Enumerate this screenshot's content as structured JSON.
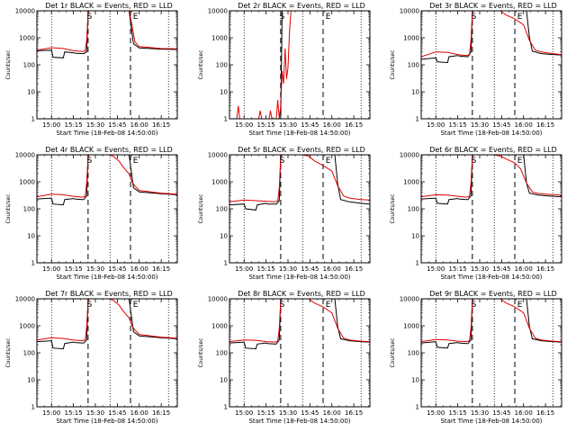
{
  "figure": {
    "y_ticks": [
      1,
      10,
      100,
      1000,
      10000
    ],
    "x_ticks": [
      {
        "t": 0,
        "label": "15:00"
      },
      {
        "t": 15,
        "label": "15:15"
      },
      {
        "t": 30,
        "label": "15:30"
      },
      {
        "t": 45,
        "label": "15:45"
      },
      {
        "t": 60,
        "label": "16:00"
      },
      {
        "t": 75,
        "label": "16:15"
      }
    ],
    "xlabel": "Start Time (18-Feb-08 14:50:00)",
    "ylabel": "Counts/sec",
    "s_marker": "S",
    "e_marker": "E",
    "colors": {
      "events": "#000000",
      "lld": "#e00000"
    },
    "dotted_lines_t": [
      0,
      40,
      80
    ],
    "dashed_lines_t": [
      25,
      54
    ],
    "s_t": 26,
    "e_t": 55
  },
  "chart_data": [
    {
      "type": "line",
      "title": "Det 1r BLACK = Events, RED = LLD",
      "xlim": [
        -10,
        86
      ],
      "ylim": [
        1,
        10000
      ],
      "yscale": "log",
      "series": [
        {
          "name": "Events",
          "x": [
            -10,
            0,
            1,
            8,
            9,
            15,
            16,
            21,
            22,
            24,
            25,
            27,
            40,
            53,
            56,
            60,
            75,
            86
          ],
          "values": [
            330,
            350,
            190,
            180,
            300,
            280,
            270,
            260,
            260,
            300,
            10000,
            10000,
            10000,
            10000,
            600,
            420,
            380,
            370
          ]
        },
        {
          "name": "LLD",
          "x": [
            -10,
            0,
            8,
            15,
            21,
            23,
            24,
            25,
            26,
            40,
            53,
            55,
            57,
            60,
            75,
            86
          ],
          "values": [
            350,
            430,
            400,
            330,
            310,
            320,
            800,
            8000,
            12000,
            12000,
            12000,
            3000,
            700,
            470,
            400,
            390
          ]
        }
      ]
    },
    {
      "type": "line",
      "title": "Det 2r BLACK = Events, RED = LLD",
      "xlim": [
        -10,
        86
      ],
      "ylim": [
        1,
        10000
      ],
      "yscale": "log",
      "series": [
        {
          "name": "Events",
          "x": [
            21,
            23,
            24,
            25,
            26,
            40,
            53
          ],
          "values": [
            1,
            1,
            1,
            1,
            10000,
            10000,
            10000
          ]
        },
        {
          "name": "LLD",
          "x": [
            -5,
            -4,
            -3,
            10,
            11,
            12,
            17,
            18,
            19,
            22,
            23,
            24,
            25,
            26,
            27,
            28,
            29,
            30,
            31,
            32,
            40,
            53
          ],
          "values": [
            1,
            3,
            1,
            1,
            2,
            1,
            1,
            2,
            1,
            1,
            5,
            1,
            3,
            60,
            20,
            400,
            30,
            80,
            1500,
            10000,
            10000,
            10000
          ]
        }
      ]
    },
    {
      "type": "line",
      "title": "Det 3r BLACK = Events, RED = LLD",
      "xlim": [
        -10,
        86
      ],
      "ylim": [
        1,
        10000
      ],
      "yscale": "log",
      "series": [
        {
          "name": "Events",
          "x": [
            -10,
            0,
            1,
            8,
            9,
            15,
            16,
            21,
            22,
            24,
            25,
            27,
            40,
            62,
            64,
            66,
            72,
            80,
            86
          ],
          "values": [
            160,
            180,
            130,
            120,
            200,
            220,
            210,
            200,
            200,
            300,
            10000,
            10000,
            10000,
            10000,
            1000,
            320,
            260,
            240,
            230
          ]
        },
        {
          "name": "LLD",
          "x": [
            -10,
            0,
            8,
            15,
            21,
            23,
            24,
            25,
            26,
            34,
            38,
            44,
            48,
            54,
            60,
            64,
            68,
            72,
            80,
            86
          ],
          "values": [
            200,
            300,
            290,
            240,
            220,
            240,
            800,
            8000,
            14000,
            14000,
            12000,
            10000,
            7000,
            5000,
            3000,
            800,
            350,
            300,
            260,
            240
          ]
        }
      ]
    },
    {
      "type": "line",
      "title": "Det 4r BLACK = Events, RED = LLD",
      "xlim": [
        -10,
        86
      ],
      "ylim": [
        1,
        10000
      ],
      "yscale": "log",
      "series": [
        {
          "name": "Events",
          "x": [
            -10,
            0,
            1,
            8,
            9,
            15,
            16,
            21,
            22,
            24,
            25,
            27,
            40,
            53,
            56,
            60,
            75,
            86
          ],
          "values": [
            230,
            250,
            150,
            140,
            220,
            240,
            230,
            220,
            220,
            300,
            10000,
            10000,
            10000,
            10000,
            600,
            420,
            360,
            330
          ]
        },
        {
          "name": "LLD",
          "x": [
            -10,
            0,
            8,
            15,
            21,
            23,
            24,
            25,
            26,
            34,
            38,
            42,
            46,
            50,
            53,
            55,
            57,
            60,
            75,
            86
          ],
          "values": [
            280,
            350,
            330,
            290,
            270,
            290,
            900,
            8000,
            14000,
            14000,
            11000,
            9000,
            6000,
            3000,
            2000,
            1000,
            700,
            480,
            380,
            350
          ]
        }
      ]
    },
    {
      "type": "line",
      "title": "Det 5r BLACK = Events, RED = LLD",
      "xlim": [
        -10,
        86
      ],
      "ylim": [
        1,
        10000
      ],
      "yscale": "log",
      "series": [
        {
          "name": "Events",
          "x": [
            -10,
            0,
            1,
            8,
            9,
            15,
            16,
            21,
            22,
            24,
            25,
            27,
            40,
            62,
            64,
            66,
            72,
            80,
            86
          ],
          "values": [
            140,
            150,
            100,
            90,
            140,
            160,
            150,
            150,
            150,
            200,
            10000,
            10000,
            10000,
            10000,
            800,
            220,
            180,
            160,
            150
          ]
        },
        {
          "name": "LLD",
          "x": [
            -10,
            0,
            8,
            15,
            21,
            23,
            24,
            25,
            26,
            34,
            38,
            44,
            48,
            54,
            60,
            64,
            68,
            72,
            80,
            86
          ],
          "values": [
            180,
            210,
            200,
            190,
            180,
            200,
            600,
            7000,
            14000,
            14000,
            11000,
            9000,
            6000,
            4000,
            2500,
            700,
            300,
            250,
            220,
            210
          ]
        }
      ]
    },
    {
      "type": "line",
      "title": "Det 6r BLACK = Events, RED = LLD",
      "xlim": [
        -10,
        86
      ],
      "ylim": [
        1,
        10000
      ],
      "yscale": "log",
      "series": [
        {
          "name": "Events",
          "x": [
            -10,
            0,
            1,
            8,
            9,
            15,
            16,
            21,
            22,
            24,
            25,
            27,
            40,
            60,
            62,
            64,
            70,
            80,
            86
          ],
          "values": [
            230,
            250,
            160,
            150,
            220,
            240,
            230,
            220,
            220,
            300,
            10000,
            10000,
            10000,
            10000,
            900,
            380,
            320,
            290,
            280
          ]
        },
        {
          "name": "LLD",
          "x": [
            -10,
            0,
            8,
            15,
            21,
            23,
            24,
            25,
            26,
            34,
            38,
            44,
            48,
            54,
            58,
            62,
            66,
            70,
            80,
            86
          ],
          "values": [
            280,
            330,
            320,
            290,
            270,
            290,
            900,
            8000,
            14000,
            14000,
            12000,
            9000,
            7000,
            5000,
            3000,
            900,
            420,
            370,
            330,
            320
          ]
        }
      ]
    },
    {
      "type": "line",
      "title": "Det 7r BLACK = Events, RED = LLD",
      "xlim": [
        -10,
        86
      ],
      "ylim": [
        1,
        10000
      ],
      "yscale": "log",
      "series": [
        {
          "name": "Events",
          "x": [
            -10,
            0,
            1,
            8,
            9,
            15,
            16,
            21,
            22,
            24,
            25,
            27,
            40,
            53,
            56,
            60,
            75,
            86
          ],
          "values": [
            260,
            280,
            150,
            140,
            220,
            250,
            240,
            230,
            230,
            300,
            10000,
            10000,
            10000,
            10000,
            600,
            420,
            360,
            330
          ]
        },
        {
          "name": "LLD",
          "x": [
            -10,
            0,
            8,
            15,
            21,
            23,
            24,
            25,
            26,
            34,
            38,
            42,
            46,
            50,
            53,
            55,
            57,
            60,
            75,
            86
          ],
          "values": [
            300,
            360,
            340,
            300,
            280,
            300,
            900,
            8000,
            14000,
            14000,
            11000,
            9000,
            6000,
            3000,
            2000,
            1000,
            700,
            480,
            380,
            350
          ]
        }
      ]
    },
    {
      "type": "line",
      "title": "Det 8r BLACK = Events, RED = LLD",
      "xlim": [
        -10,
        86
      ],
      "ylim": [
        1,
        10000
      ],
      "yscale": "log",
      "series": [
        {
          "name": "Events",
          "x": [
            -10,
            0,
            1,
            8,
            9,
            15,
            16,
            21,
            22,
            24,
            25,
            27,
            40,
            62,
            64,
            66,
            72,
            80,
            86
          ],
          "values": [
            230,
            250,
            150,
            140,
            210,
            230,
            220,
            210,
            210,
            300,
            10000,
            10000,
            10000,
            10000,
            900,
            330,
            280,
            260,
            250
          ]
        },
        {
          "name": "LLD",
          "x": [
            -10,
            0,
            8,
            15,
            21,
            23,
            24,
            25,
            26,
            34,
            38,
            44,
            48,
            54,
            60,
            64,
            68,
            72,
            80,
            86
          ],
          "values": [
            260,
            300,
            290,
            260,
            250,
            270,
            800,
            8000,
            14000,
            14000,
            12000,
            10000,
            7000,
            5000,
            3000,
            800,
            350,
            300,
            270,
            260
          ]
        }
      ]
    },
    {
      "type": "line",
      "title": "Det 9r BLACK = Events, RED = LLD",
      "xlim": [
        -10,
        86
      ],
      "ylim": [
        1,
        10000
      ],
      "yscale": "log",
      "series": [
        {
          "name": "Events",
          "x": [
            -10,
            0,
            1,
            8,
            9,
            15,
            16,
            21,
            22,
            24,
            25,
            27,
            40,
            62,
            64,
            66,
            72,
            80,
            86
          ],
          "values": [
            230,
            260,
            160,
            150,
            220,
            240,
            230,
            220,
            220,
            300,
            10000,
            10000,
            10000,
            10000,
            900,
            330,
            280,
            260,
            250
          ]
        },
        {
          "name": "LLD",
          "x": [
            -10,
            0,
            8,
            15,
            21,
            23,
            24,
            25,
            26,
            34,
            38,
            44,
            48,
            54,
            60,
            64,
            68,
            72,
            80,
            86
          ],
          "values": [
            260,
            310,
            300,
            270,
            260,
            280,
            800,
            8000,
            14000,
            14000,
            12000,
            10000,
            7000,
            5000,
            3000,
            800,
            350,
            300,
            270,
            260
          ]
        }
      ]
    }
  ]
}
